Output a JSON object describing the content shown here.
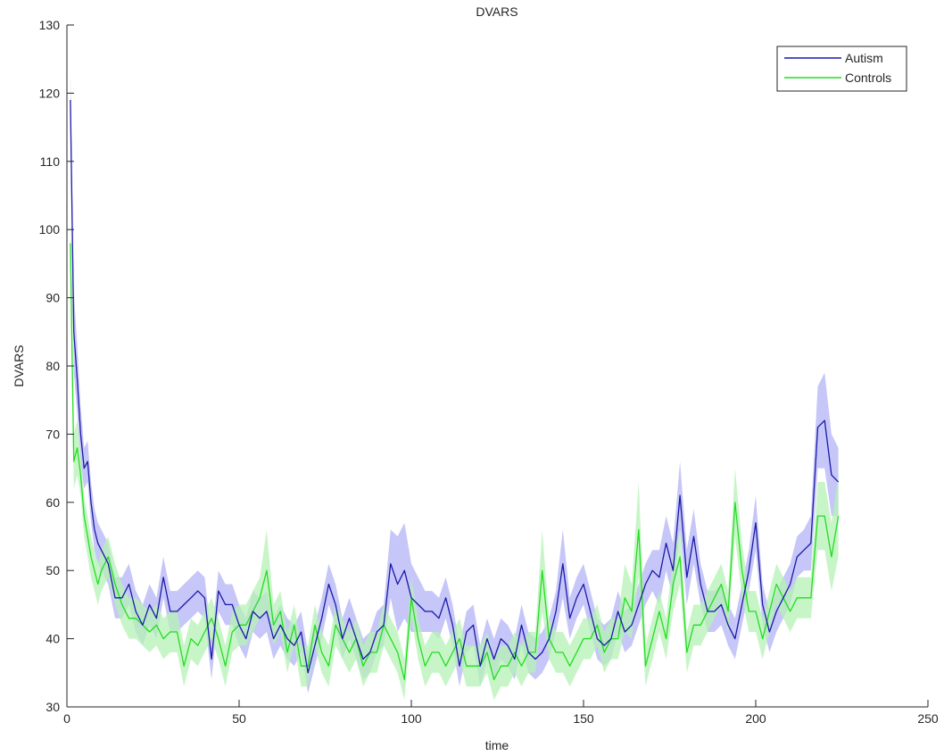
{
  "chart_data": {
    "type": "line",
    "title": "DVARS",
    "xlabel": "time",
    "ylabel": "DVARS",
    "xlim": [
      0,
      250
    ],
    "ylim": [
      30,
      130
    ],
    "xticks": [
      "0",
      "50",
      "100",
      "150",
      "200",
      "250"
    ],
    "yticks": [
      "30",
      "40",
      "50",
      "60",
      "70",
      "80",
      "90",
      "100",
      "110",
      "120",
      "130"
    ],
    "grid": false,
    "legend_position": "top-right",
    "series": [
      {
        "name": "Autism",
        "color": "#1a1aa8",
        "band_color": "#b3b3f5",
        "x": [
          1,
          2,
          3,
          4,
          5,
          6,
          7,
          8,
          9,
          10,
          12,
          14,
          16,
          18,
          20,
          22,
          24,
          26,
          28,
          30,
          32,
          34,
          36,
          38,
          40,
          42,
          44,
          46,
          48,
          50,
          52,
          54,
          56,
          58,
          60,
          62,
          64,
          66,
          68,
          70,
          72,
          74,
          76,
          78,
          80,
          82,
          84,
          86,
          88,
          90,
          92,
          94,
          96,
          98,
          100,
          102,
          104,
          106,
          108,
          110,
          112,
          114,
          116,
          118,
          120,
          122,
          124,
          126,
          128,
          130,
          132,
          134,
          136,
          138,
          140,
          142,
          144,
          146,
          148,
          150,
          152,
          154,
          156,
          158,
          160,
          162,
          164,
          166,
          168,
          170,
          172,
          174,
          176,
          178,
          180,
          182,
          184,
          186,
          188,
          190,
          192,
          194,
          196,
          198,
          200,
          202,
          204,
          206,
          208,
          210,
          212,
          214,
          216,
          218,
          220,
          222,
          224
        ],
        "values": [
          119,
          85,
          78,
          70,
          65,
          66,
          60,
          56,
          54,
          53,
          51,
          46,
          46,
          48,
          44,
          42,
          45,
          43,
          49,
          44,
          44,
          45,
          46,
          47,
          46,
          37,
          47,
          45,
          45,
          42,
          40,
          44,
          43,
          44,
          40,
          42,
          40,
          39,
          41,
          35,
          39,
          43,
          48,
          45,
          40,
          43,
          40,
          37,
          38,
          41,
          42,
          51,
          48,
          50,
          46,
          45,
          44,
          44,
          43,
          46,
          42,
          36,
          41,
          42,
          36,
          40,
          37,
          40,
          39,
          37,
          42,
          38,
          37,
          38,
          40,
          44,
          51,
          43,
          46,
          48,
          44,
          40,
          39,
          40,
          44,
          41,
          42,
          45,
          48,
          50,
          49,
          54,
          50,
          61,
          49,
          55,
          48,
          44,
          44,
          45,
          42,
          40,
          45,
          50,
          57,
          45,
          41,
          44,
          46,
          48,
          52,
          53,
          54,
          71,
          72,
          64,
          63
        ],
        "band": [
          4,
          6,
          5,
          4,
          3,
          3,
          3,
          3,
          3,
          3,
          3,
          3,
          3,
          3,
          3,
          3,
          3,
          3,
          3,
          3,
          3,
          3,
          3,
          3,
          3,
          3,
          3,
          3,
          3,
          3,
          3,
          3,
          3,
          3,
          3,
          3,
          3,
          3,
          3,
          3,
          3,
          3,
          3,
          3,
          3,
          3,
          3,
          3,
          3,
          3,
          3,
          5,
          7,
          7,
          5,
          4,
          3,
          3,
          3,
          3,
          3,
          3,
          3,
          3,
          3,
          3,
          3,
          3,
          3,
          3,
          3,
          3,
          3,
          3,
          3,
          3,
          5,
          3,
          3,
          3,
          3,
          3,
          3,
          3,
          3,
          3,
          3,
          3,
          3,
          3,
          4,
          4,
          4,
          5,
          4,
          4,
          3,
          3,
          3,
          3,
          3,
          3,
          3,
          3,
          4,
          3,
          3,
          3,
          3,
          3,
          3,
          3,
          4,
          6,
          7,
          6,
          5
        ]
      },
      {
        "name": "Controls",
        "color": "#22dd22",
        "band_color": "#b6f2b6",
        "x": [
          1,
          2,
          3,
          4,
          5,
          6,
          7,
          8,
          9,
          10,
          12,
          14,
          16,
          18,
          20,
          22,
          24,
          26,
          28,
          30,
          32,
          34,
          36,
          38,
          40,
          42,
          44,
          46,
          48,
          50,
          52,
          54,
          56,
          58,
          60,
          62,
          64,
          66,
          68,
          70,
          72,
          74,
          76,
          78,
          80,
          82,
          84,
          86,
          88,
          90,
          92,
          94,
          96,
          98,
          100,
          102,
          104,
          106,
          108,
          110,
          112,
          114,
          116,
          118,
          120,
          122,
          124,
          126,
          128,
          130,
          132,
          134,
          136,
          138,
          140,
          142,
          144,
          146,
          148,
          150,
          152,
          154,
          156,
          158,
          160,
          162,
          164,
          166,
          168,
          170,
          172,
          174,
          176,
          178,
          180,
          182,
          184,
          186,
          188,
          190,
          192,
          194,
          196,
          198,
          200,
          202,
          204,
          206,
          208,
          210,
          212,
          214,
          216,
          218,
          220,
          222,
          224
        ],
        "values": [
          98,
          66,
          68,
          64,
          58,
          55,
          52,
          50,
          48,
          50,
          52,
          48,
          45,
          43,
          43,
          42,
          41,
          42,
          40,
          41,
          41,
          36,
          40,
          39,
          41,
          43,
          40,
          36,
          41,
          42,
          42,
          44,
          46,
          50,
          42,
          44,
          38,
          42,
          36,
          36,
          42,
          38,
          36,
          42,
          40,
          38,
          40,
          36,
          38,
          38,
          42,
          40,
          38,
          34,
          46,
          40,
          36,
          38,
          38,
          36,
          38,
          40,
          36,
          36,
          36,
          38,
          34,
          36,
          36,
          38,
          36,
          38,
          38,
          50,
          40,
          38,
          38,
          36,
          38,
          40,
          40,
          42,
          38,
          40,
          40,
          46,
          44,
          56,
          36,
          40,
          44,
          40,
          48,
          52,
          38,
          42,
          42,
          44,
          46,
          48,
          44,
          60,
          50,
          44,
          44,
          40,
          44,
          48,
          46,
          44,
          46,
          46,
          46,
          58,
          58,
          52,
          58
        ],
        "band": [
          4,
          4,
          4,
          3,
          3,
          3,
          3,
          3,
          3,
          3,
          3,
          3,
          3,
          3,
          3,
          3,
          3,
          3,
          3,
          3,
          3,
          3,
          3,
          3,
          3,
          3,
          3,
          3,
          3,
          3,
          3,
          3,
          3,
          6,
          3,
          3,
          3,
          3,
          3,
          3,
          3,
          3,
          3,
          3,
          3,
          3,
          3,
          3,
          3,
          3,
          3,
          3,
          3,
          3,
          3,
          3,
          3,
          3,
          3,
          3,
          3,
          3,
          3,
          3,
          3,
          3,
          3,
          3,
          3,
          3,
          3,
          3,
          3,
          6,
          3,
          3,
          3,
          3,
          3,
          3,
          3,
          3,
          3,
          3,
          3,
          5,
          4,
          7,
          3,
          3,
          3,
          3,
          4,
          4,
          3,
          3,
          3,
          3,
          3,
          3,
          3,
          5,
          4,
          3,
          3,
          3,
          3,
          3,
          3,
          3,
          3,
          3,
          3,
          5,
          5,
          5,
          6
        ]
      }
    ]
  }
}
